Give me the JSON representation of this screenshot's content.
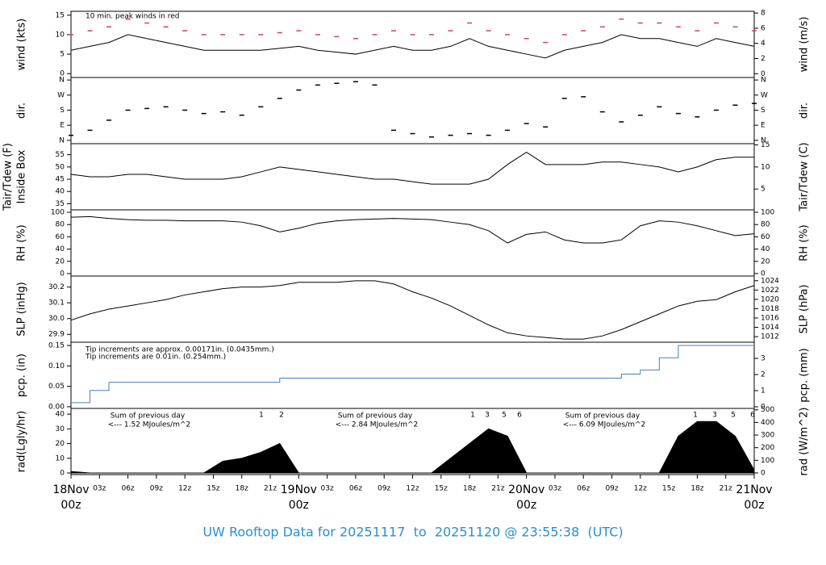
{
  "title": "UW Rooftop Data for 20251117  to  20251120 @ 23:55:38  (UTC)",
  "time_axis": {
    "x": [
      "18Nov 00z",
      "18Nov 02z",
      "18Nov 04z",
      "18Nov 06z",
      "18Nov 08z",
      "18Nov 10z",
      "18Nov 12z",
      "18Nov 14z",
      "18Nov 16z",
      "18Nov 18z",
      "18Nov 20z",
      "18Nov 22z",
      "19Nov 00z",
      "19Nov 02z",
      "19Nov 04z",
      "19Nov 06z",
      "19Nov 08z",
      "19Nov 10z",
      "19Nov 12z",
      "19Nov 14z",
      "19Nov 16z",
      "19Nov 18z",
      "19Nov 20z",
      "19Nov 22z",
      "20Nov 00z",
      "20Nov 02z",
      "20Nov 04z",
      "20Nov 06z",
      "20Nov 08z",
      "20Nov 10z",
      "20Nov 12z",
      "20Nov 14z",
      "20Nov 16z",
      "20Nov 18z",
      "20Nov 20z",
      "20Nov 22z",
      "21Nov 00z"
    ],
    "xticks": [
      {
        "value": "18Nov 00z",
        "label": "00z",
        "day": "18Nov"
      },
      {
        "value": "18Nov 03z",
        "label": "03z"
      },
      {
        "value": "18Nov 06z",
        "label": "06z"
      },
      {
        "value": "18Nov 09z",
        "label": "09z"
      },
      {
        "value": "18Nov 12z",
        "label": "12z"
      },
      {
        "value": "18Nov 15z",
        "label": "15z"
      },
      {
        "value": "18Nov 18z",
        "label": "18z"
      },
      {
        "value": "18Nov 21z",
        "label": "21z"
      },
      {
        "value": "19Nov 00z",
        "label": "00z",
        "day": "19Nov"
      },
      {
        "value": "19Nov 03z",
        "label": "03z"
      },
      {
        "value": "19Nov 06z",
        "label": "06z"
      },
      {
        "value": "19Nov 09z",
        "label": "09z"
      },
      {
        "value": "19Nov 12z",
        "label": "12z"
      },
      {
        "value": "19Nov 15z",
        "label": "15z"
      },
      {
        "value": "19Nov 18z",
        "label": "18z"
      },
      {
        "value": "19Nov 21z",
        "label": "21z"
      },
      {
        "value": "20Nov 00z",
        "label": "00z",
        "day": "20Nov"
      },
      {
        "value": "20Nov 03z",
        "label": "03z"
      },
      {
        "value": "20Nov 06z",
        "label": "06z"
      },
      {
        "value": "20Nov 09z",
        "label": "09z"
      },
      {
        "value": "20Nov 12z",
        "label": "12z"
      },
      {
        "value": "20Nov 15z",
        "label": "15z"
      },
      {
        "value": "20Nov 18z",
        "label": "18z"
      },
      {
        "value": "20Nov 21z",
        "label": "21z"
      },
      {
        "value": "21Nov 00z",
        "label": "00z",
        "day": "21Nov"
      }
    ]
  },
  "chart_data": [
    {
      "type": "line",
      "ylabel": "wind (kts)",
      "y2label": "wind (m/s)",
      "ylim": [
        -1,
        16
      ],
      "yticks": [
        0,
        5,
        10,
        15
      ],
      "y2lim": [
        -0.5,
        8.23
      ],
      "y2ticks": [
        0,
        2,
        4,
        6,
        8
      ],
      "annotations": [
        {
          "text": "10 min. peak winds in red",
          "color": "#d04060"
        }
      ],
      "series": [
        {
          "color": "#000000",
          "values": [
            6,
            7,
            8,
            10,
            9,
            8,
            7,
            6,
            6,
            6,
            6,
            6.5,
            7,
            6,
            5.5,
            5,
            6,
            7,
            6,
            6,
            7,
            9,
            7,
            6,
            5,
            4,
            6,
            7,
            8,
            10,
            9,
            9,
            8,
            7,
            9,
            8,
            7
          ]
        },
        {
          "color": "#d04060",
          "style": "dash",
          "values": [
            10,
            11,
            12,
            14,
            13,
            12,
            11,
            10,
            10,
            10,
            10,
            10.5,
            11,
            10,
            9.5,
            9,
            10,
            11,
            10,
            10,
            11,
            13,
            11,
            10,
            9,
            8,
            10,
            11,
            12,
            14,
            13,
            13,
            12,
            11,
            13,
            12,
            11
          ]
        }
      ]
    },
    {
      "type": "scatter",
      "ylabel": "dir.",
      "y2label": "dir.",
      "ylim": [
        -20,
        375
      ],
      "yticks": [
        {
          "value": 0,
          "label": "N"
        },
        {
          "value": 90,
          "label": "E"
        },
        {
          "value": 180,
          "label": "S"
        },
        {
          "value": 270,
          "label": "W"
        },
        {
          "value": 360,
          "label": "N"
        }
      ],
      "y2lim": [
        -20,
        375
      ],
      "y2ticks": [
        {
          "value": 0,
          "label": "N"
        },
        {
          "value": 90,
          "label": "E"
        },
        {
          "value": 180,
          "label": "S"
        },
        {
          "value": 270,
          "label": "W"
        },
        {
          "value": 360,
          "label": "N"
        }
      ],
      "series": [
        {
          "color": "#000000",
          "values": [
            30,
            60,
            120,
            180,
            190,
            200,
            180,
            160,
            170,
            150,
            200,
            250,
            300,
            330,
            340,
            350,
            330,
            60,
            40,
            20,
            30,
            40,
            30,
            60,
            100,
            80,
            250,
            260,
            170,
            110,
            150,
            200,
            160,
            140,
            180,
            210,
            220
          ]
        }
      ]
    },
    {
      "type": "line",
      "ylabel": "Tair/Tdew (F)",
      "ylabel_sub": "Inside Box",
      "y2label": "Tair/Tdew (C)",
      "ylim": [
        32.5,
        59.5
      ],
      "yticks": [
        35,
        40,
        45,
        50,
        55
      ],
      "y2lim": [
        0.28,
        15.28
      ],
      "y2ticks": [
        5,
        10,
        15
      ],
      "series": [
        {
          "color": "#000000",
          "values": [
            47,
            46,
            46,
            47,
            47,
            46,
            45,
            45,
            45,
            46,
            48,
            50,
            49,
            48,
            47,
            46,
            45,
            45,
            44,
            43,
            43,
            43,
            45,
            51,
            56,
            51,
            51,
            51,
            52,
            52,
            51,
            50,
            48,
            50,
            53,
            54,
            54
          ]
        }
      ]
    },
    {
      "type": "line",
      "ylabel": "RH (%)",
      "y2label": "RH (%)",
      "ylim": [
        -4,
        104
      ],
      "yticks": [
        0,
        20,
        40,
        60,
        80,
        100
      ],
      "y2lim": [
        -4,
        104
      ],
      "y2ticks": [
        0,
        20,
        40,
        60,
        80,
        100
      ],
      "series": [
        {
          "color": "#000000",
          "values": [
            92,
            93,
            90,
            88,
            87,
            87,
            86,
            86,
            86,
            84,
            78,
            68,
            74,
            82,
            86,
            88,
            89,
            90,
            89,
            88,
            84,
            80,
            70,
            50,
            64,
            68,
            55,
            50,
            50,
            55,
            78,
            86,
            84,
            78,
            70,
            62,
            65
          ]
        }
      ]
    },
    {
      "type": "line",
      "ylabel": "SLP (inHg)",
      "y2label": "SLP (hPa)",
      "ylim": [
        29.85,
        30.27
      ],
      "yticks": [
        29.9,
        {
          "value": 30,
          "label": "30.0"
        },
        30.1,
        30.2
      ],
      "y2lim": [
        1010.8,
        1025
      ],
      "y2ticks": [
        1012,
        1014,
        1016,
        1018,
        1020,
        1022,
        1024
      ],
      "series": [
        {
          "color": "#000000",
          "values": [
            29.99,
            30.03,
            30.06,
            30.08,
            30.1,
            30.12,
            30.15,
            30.17,
            30.19,
            30.2,
            30.2,
            30.21,
            30.23,
            30.23,
            30.23,
            30.24,
            30.24,
            30.22,
            30.17,
            30.13,
            30.08,
            30.02,
            29.96,
            29.91,
            29.89,
            29.88,
            29.87,
            29.87,
            29.89,
            29.93,
            29.98,
            30.03,
            30.08,
            30.11,
            30.12,
            30.17,
            30.21
          ]
        }
      ]
    },
    {
      "type": "step",
      "ylabel": "pcp. (in)",
      "y2label": "pcp. (mm)",
      "ylim": [
        -0.004,
        0.158
      ],
      "yticks": [
        {
          "value": 0,
          "label": "0.00"
        },
        0.05,
        {
          "value": 0.1,
          "label": "0.10"
        },
        0.15
      ],
      "y2lim": [
        -0.1,
        4.0
      ],
      "y2ticks": [
        0,
        1,
        2,
        3
      ],
      "annotations": [
        {
          "text": "Tip increments are approx. 0.00171in. (0.0435mm.)",
          "color": "#d04060"
        },
        {
          "text": "Tip increments are 0.01in. (0.254mm.)",
          "color": "#3a7fc8"
        }
      ],
      "series": [
        {
          "color": "#4a7fc0",
          "values": [
            0.01,
            0.04,
            0.06,
            0.06,
            0.06,
            0.06,
            0.06,
            0.06,
            0.06,
            0.06,
            0.06,
            0.07,
            0.07,
            0.07,
            0.07,
            0.07,
            0.07,
            0.07,
            0.07,
            0.07,
            0.07,
            0.07,
            0.07,
            0.07,
            0.07,
            0.07,
            0.07,
            0.07,
            0.07,
            0.08,
            0.09,
            0.12,
            0.15,
            0.15,
            0.15,
            0.15,
            0.15
          ]
        }
      ]
    },
    {
      "type": "area",
      "ylabel": "rad(Lgly/hr)",
      "y2label": "rad (W/m^2)",
      "ylim": [
        -1.1,
        43.9
      ],
      "yticks": [
        0,
        10,
        20,
        30,
        40
      ],
      "y2lim": [
        -13,
        511
      ],
      "y2ticks": [
        0,
        100,
        200,
        300,
        400,
        500
      ],
      "annotations": [
        {
          "text": "Sum of previous day",
          "color": "#9b30d0"
        },
        {
          "text": "<--- 1.52 MJoules/m^2",
          "color": "#9b30d0"
        },
        {
          "text": "Sum of previous day",
          "color": "#9b30d0"
        },
        {
          "text": "<--- 2.84 MJoules/m^2",
          "color": "#9b30d0"
        },
        {
          "text": "Sum of previous day",
          "color": "#9b30d0"
        },
        {
          "text": "<--- 6.09 MJoules/m^2",
          "color": "#9b30d0"
        },
        {
          "text": "1",
          "color": "#9b30d0"
        },
        {
          "text": "2",
          "color": "#9b30d0"
        },
        {
          "text": "1",
          "color": "#9b30d0"
        },
        {
          "text": "3",
          "color": "#9b30d0"
        },
        {
          "text": "5",
          "color": "#9b30d0"
        },
        {
          "text": "6",
          "color": "#9b30d0"
        },
        {
          "text": "1",
          "color": "#9b30d0"
        },
        {
          "text": "3",
          "color": "#9b30d0"
        },
        {
          "text": "5",
          "color": "#9b30d0"
        },
        {
          "text": "6",
          "color": "#9b30d0"
        }
      ],
      "series": [
        {
          "color": "#000000",
          "values": [
            1,
            0,
            0,
            0,
            0,
            0,
            0,
            0,
            8,
            10,
            14,
            20,
            0,
            0,
            0,
            0,
            0,
            0,
            0,
            0,
            10,
            20,
            30,
            25,
            0,
            0,
            0,
            0,
            0,
            0,
            0,
            0,
            25,
            35,
            35,
            25,
            2
          ]
        }
      ]
    }
  ]
}
